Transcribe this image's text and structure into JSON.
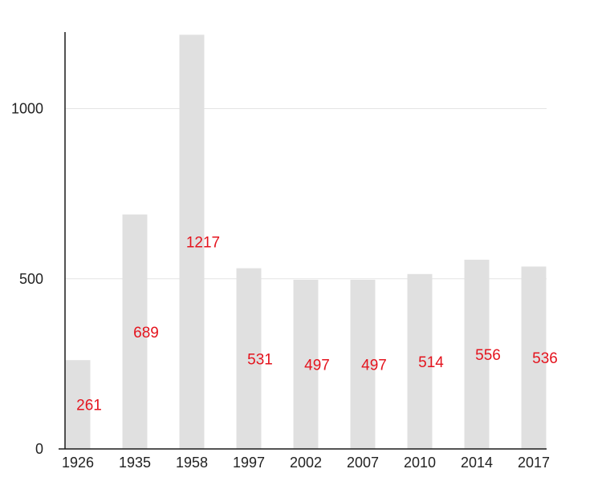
{
  "chart_data": {
    "type": "bar",
    "title": "",
    "xlabel": "",
    "ylabel": "",
    "categories": [
      "1926",
      "1935",
      "1958",
      "1997",
      "2002",
      "2007",
      "2010",
      "2014",
      "2017"
    ],
    "values": [
      261,
      689,
      1217,
      531,
      497,
      497,
      514,
      556,
      536
    ],
    "data_labels": [
      "261",
      "689",
      "1217",
      "531",
      "497",
      "497",
      "514",
      "556",
      "536"
    ],
    "y_ticks": [
      0,
      500,
      1000
    ],
    "y_tick_labels": [
      "0",
      "500",
      "1000"
    ],
    "ylim": [
      0,
      1225
    ],
    "grid": true,
    "bar_color": "#e0e0e0",
    "label_color": "#e4141e",
    "axis_color": "#1a1a1a",
    "grid_color": "#e4e4e4"
  }
}
